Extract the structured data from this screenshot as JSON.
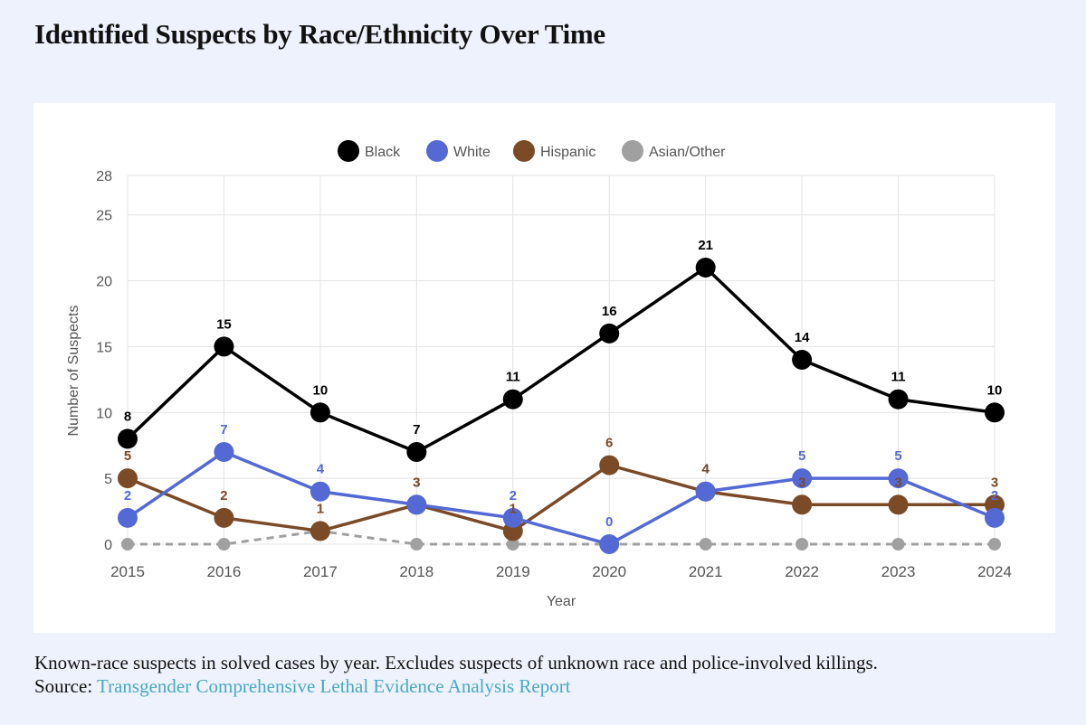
{
  "title": "Identified Suspects by Race/Ethnicity Over Time",
  "footer": {
    "note": "Known-race suspects in solved cases by year. Excludes suspects of unknown race and police-involved killings.",
    "source_label": "Source:",
    "source_link": "Transgender Comprehensive Lethal Evidence Analysis Report"
  },
  "chart_data": {
    "type": "line",
    "title": "",
    "xlabel": "Year",
    "ylabel": "Number of Suspects",
    "ylim": [
      0,
      28
    ],
    "yticks": [
      0,
      5,
      10,
      15,
      20,
      25,
      28
    ],
    "grid": true,
    "legend": "top-center",
    "categories": [
      "2015",
      "2016",
      "2017",
      "2018",
      "2019",
      "2020",
      "2021",
      "2022",
      "2023",
      "2024"
    ],
    "series": [
      {
        "name": "Black",
        "color": "#000000",
        "dashed": false,
        "labels": true,
        "values": [
          8,
          15,
          10,
          7,
          11,
          16,
          21,
          14,
          11,
          10
        ]
      },
      {
        "name": "White",
        "color": "#5469d4",
        "dashed": false,
        "labels": true,
        "values": [
          2,
          7,
          4,
          3,
          2,
          0,
          4,
          5,
          5,
          2
        ]
      },
      {
        "name": "Hispanic",
        "color": "#7b4a27",
        "dashed": false,
        "labels": true,
        "values": [
          5,
          2,
          1,
          3,
          1,
          6,
          4,
          3,
          3,
          3
        ]
      },
      {
        "name": "Asian/Other",
        "color": "#a0a0a0",
        "dashed": true,
        "labels": false,
        "values": [
          0,
          0,
          1,
          0,
          0,
          0,
          0,
          0,
          0,
          0
        ]
      }
    ]
  }
}
